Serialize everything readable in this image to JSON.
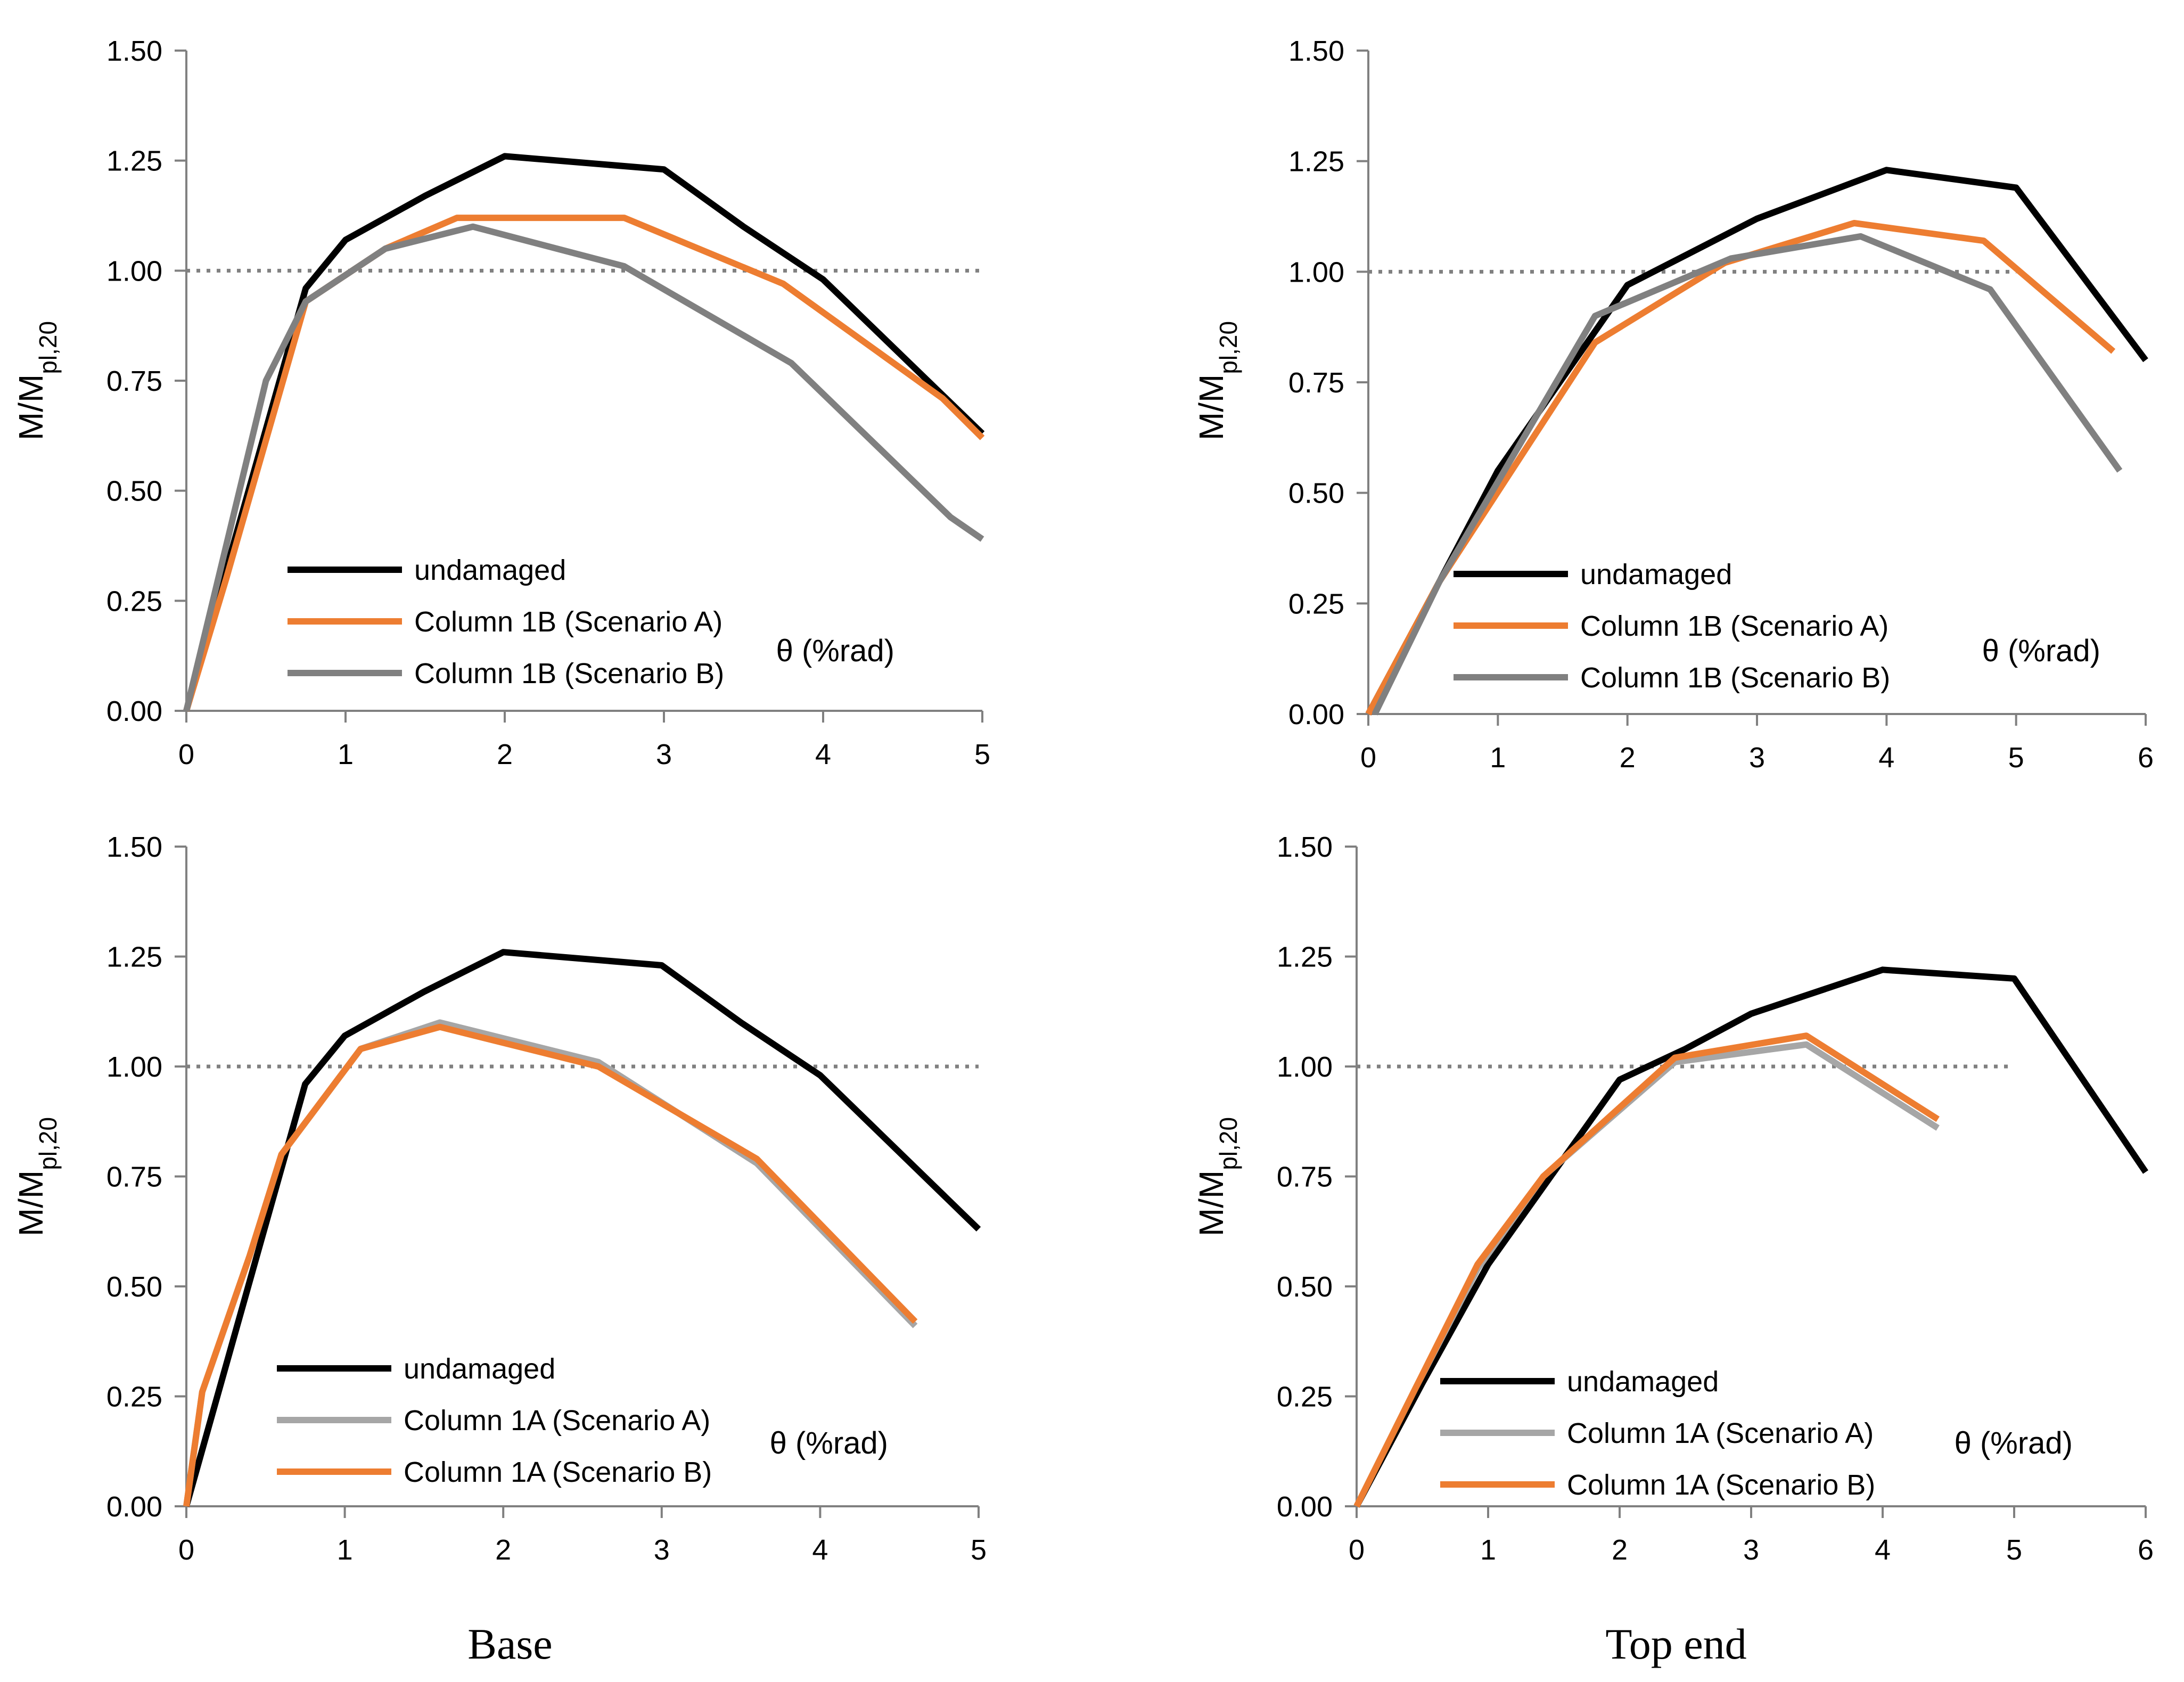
{
  "captions": [
    "Base",
    "Top end"
  ],
  "colors": {
    "undamaged": "#000000",
    "orange": "#ED7D31",
    "gray_dark": "#808080",
    "gray_light": "#A6A6A6",
    "axis": "#808080"
  },
  "chart_data": [
    {
      "type": "line",
      "panel": "top-left",
      "title": "",
      "xlabel": "θ (%rad)",
      "ylabel": "M/M",
      "ylabel_sub": "pl,20",
      "xlim": [
        0,
        5
      ],
      "ylim": [
        0,
        1.5
      ],
      "xticks": [
        "0",
        "1",
        "2",
        "3",
        "4",
        "5"
      ],
      "yticks": [
        "0.00",
        "0.25",
        "0.50",
        "0.75",
        "1.00",
        "1.25",
        "1.50"
      ],
      "reference_line": {
        "y": 1.0,
        "x": [
          0,
          5
        ],
        "style": "dotted"
      },
      "legend_position": "bottom-left",
      "series": [
        {
          "name": "undamaged",
          "color": "#000000",
          "x": [
            0,
            0.75,
            1.0,
            1.5,
            2.0,
            3.0,
            3.5,
            4.0,
            5.0
          ],
          "y": [
            0.0,
            0.96,
            1.07,
            1.17,
            1.26,
            1.23,
            1.1,
            0.98,
            0.63
          ]
        },
        {
          "name": "Column 1B (Scenario A)",
          "color": "#ED7D31",
          "x": [
            0,
            0.25,
            0.75,
            1.25,
            1.7,
            2.5,
            2.75,
            3.75,
            4.75,
            5.0
          ],
          "y": [
            0.0,
            0.3,
            0.93,
            1.05,
            1.12,
            1.12,
            1.12,
            0.97,
            0.71,
            0.62
          ]
        },
        {
          "name": "Column 1B (Scenario B)",
          "color": "#808080",
          "x": [
            0,
            0.5,
            0.75,
            1.25,
            1.8,
            2.75,
            3.8,
            4.8,
            5.0
          ],
          "y": [
            0.0,
            0.75,
            0.93,
            1.05,
            1.1,
            1.01,
            0.79,
            0.44,
            0.39
          ]
        }
      ]
    },
    {
      "type": "line",
      "panel": "top-right",
      "title": "",
      "xlabel": "θ (%rad)",
      "ylabel": "M/M",
      "ylabel_sub": "pl,20",
      "xlim": [
        0,
        6
      ],
      "ylim": [
        0,
        1.5
      ],
      "xticks": [
        "0",
        "1",
        "2",
        "3",
        "4",
        "5",
        "6"
      ],
      "yticks": [
        "0.00",
        "0.25",
        "0.50",
        "0.75",
        "1.00",
        "1.25",
        "1.50"
      ],
      "reference_line": {
        "y": 1.0,
        "x": [
          0,
          5
        ],
        "style": "dotted"
      },
      "legend_position": "bottom-left",
      "series": [
        {
          "name": "undamaged",
          "color": "#000000",
          "x": [
            0,
            0.55,
            1.0,
            2.0,
            3.0,
            4.0,
            5.0,
            6.0
          ],
          "y": [
            0.0,
            0.3,
            0.55,
            0.97,
            1.12,
            1.23,
            1.19,
            0.8
          ]
        },
        {
          "name": "Column 1B (Scenario A)",
          "color": "#ED7D31",
          "x": [
            0,
            0.55,
            1.75,
            2.75,
            3.75,
            4.75,
            5.75
          ],
          "y": [
            0.0,
            0.3,
            0.84,
            1.02,
            1.11,
            1.07,
            0.82
          ]
        },
        {
          "name": "Column 1B (Scenario B)",
          "color": "#808080",
          "x": [
            0.05,
            0.55,
            1.75,
            2.8,
            3.8,
            4.8,
            5.8
          ],
          "y": [
            0.0,
            0.3,
            0.9,
            1.03,
            1.08,
            0.96,
            0.55
          ]
        }
      ]
    },
    {
      "type": "line",
      "panel": "bottom-left",
      "title": "",
      "xlabel": "θ (%rad)",
      "ylabel": "M/M",
      "ylabel_sub": "pl,20",
      "xlim": [
        0,
        5
      ],
      "ylim": [
        0,
        1.5
      ],
      "xticks": [
        "0",
        "1",
        "2",
        "3",
        "4",
        "5"
      ],
      "yticks": [
        "0.00",
        "0.25",
        "0.50",
        "0.75",
        "1.00",
        "1.25",
        "1.50"
      ],
      "reference_line": {
        "y": 1.0,
        "x": [
          0,
          5
        ],
        "style": "dotted"
      },
      "legend_position": "bottom-left",
      "series": [
        {
          "name": "undamaged",
          "color": "#000000",
          "x": [
            0,
            0.75,
            1.0,
            1.5,
            2.0,
            3.0,
            3.5,
            4.0,
            5.0
          ],
          "y": [
            0.0,
            0.96,
            1.07,
            1.17,
            1.26,
            1.23,
            1.1,
            0.98,
            0.63
          ]
        },
        {
          "name": "Column 1A (Scenario A)",
          "color": "#A6A6A6",
          "x": [
            0,
            0.1,
            0.4,
            0.6,
            1.1,
            1.6,
            2.6,
            3.6,
            4.6
          ],
          "y": [
            0.0,
            0.26,
            0.57,
            0.8,
            1.04,
            1.1,
            1.01,
            0.78,
            0.41
          ]
        },
        {
          "name": "Column 1A (Scenario B)",
          "color": "#ED7D31",
          "x": [
            0,
            0.1,
            0.4,
            0.6,
            1.1,
            1.6,
            2.6,
            3.6,
            4.6
          ],
          "y": [
            0.0,
            0.26,
            0.57,
            0.8,
            1.04,
            1.09,
            1.0,
            0.79,
            0.42
          ]
        }
      ]
    },
    {
      "type": "line",
      "panel": "bottom-right",
      "title": "",
      "xlabel": "θ (%rad)",
      "ylabel": "M/M",
      "ylabel_sub": "pl,20",
      "xlim": [
        0,
        6
      ],
      "ylim": [
        0,
        1.5
      ],
      "xticks": [
        "0",
        "1",
        "2",
        "3",
        "4",
        "5",
        "6"
      ],
      "yticks": [
        "0.00",
        "0.25",
        "0.50",
        "0.75",
        "1.00",
        "1.25",
        "1.50"
      ],
      "reference_line": {
        "y": 1.0,
        "x": [
          0,
          5
        ],
        "style": "dotted"
      },
      "legend_position": "bottom-left",
      "series": [
        {
          "name": "undamaged",
          "color": "#000000",
          "x": [
            0,
            0.5,
            1.0,
            2.0,
            2.5,
            3.0,
            4.0,
            5.0,
            6.0
          ],
          "y": [
            0.0,
            0.28,
            0.55,
            0.97,
            1.04,
            1.12,
            1.22,
            1.2,
            0.76
          ]
        },
        {
          "name": "Column 1A (Scenario A)",
          "color": "#A6A6A6",
          "x": [
            0,
            0.45,
            0.92,
            1.42,
            2.42,
            3.42,
            4.42
          ],
          "y": [
            0.0,
            0.27,
            0.54,
            0.75,
            1.01,
            1.05,
            0.86
          ]
        },
        {
          "name": "Column 1A (Scenario B)",
          "color": "#ED7D31",
          "x": [
            0,
            0.45,
            0.92,
            1.42,
            2.42,
            3.42,
            4.42
          ],
          "y": [
            0.0,
            0.27,
            0.55,
            0.75,
            1.02,
            1.07,
            0.88
          ]
        }
      ]
    }
  ]
}
